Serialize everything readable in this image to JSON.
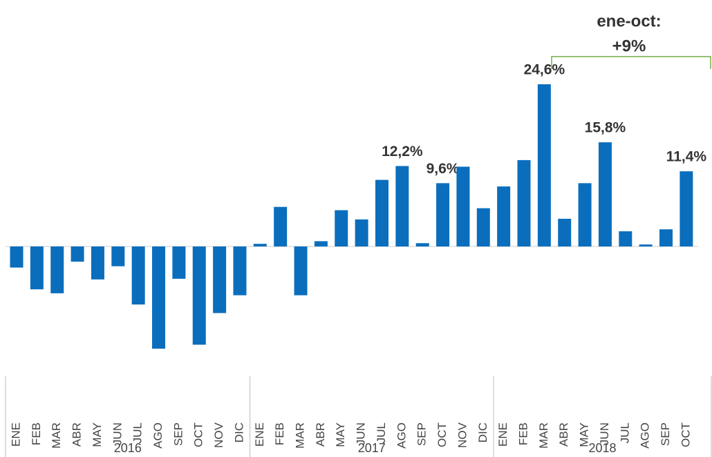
{
  "chart_data": {
    "type": "bar",
    "color": "#0a6ebd",
    "annotation": [
      "ene-oct:",
      "+9%"
    ],
    "groups": [
      {
        "name": "2016",
        "categories": [
          "ENE",
          "FEB",
          "MAR",
          "ABR",
          "MAY",
          "JUN",
          "JUL",
          "AGO",
          "SEP",
          "OCT",
          "NOV",
          "DIC"
        ]
      },
      {
        "name": "2017",
        "categories": [
          "ENE",
          "FEB",
          "MAR",
          "ABR",
          "MAY",
          "JUN",
          "JUL",
          "AGO",
          "SEP",
          "OCT",
          "NOV",
          "DIC"
        ]
      },
      {
        "name": "2018",
        "categories": [
          "ENE",
          "FEB",
          "MAR",
          "ABR",
          "MAY",
          "JUN",
          "JUL",
          "AGO",
          "SEP",
          "OCT"
        ]
      }
    ],
    "values": [
      -3.2,
      -6.5,
      -7.1,
      -2.3,
      -5.0,
      -3.0,
      -8.8,
      -15.5,
      -4.9,
      -14.9,
      -10.1,
      -7.4,
      0.4,
      6.0,
      -7.4,
      0.8,
      5.5,
      4.1,
      10.1,
      12.2,
      0.5,
      9.6,
      12.1,
      5.8,
      9.1,
      13.1,
      24.6,
      4.2,
      9.6,
      15.8,
      2.3,
      0.3,
      2.6,
      11.4
    ],
    "value_labels": [
      null,
      null,
      null,
      null,
      null,
      null,
      null,
      null,
      null,
      null,
      null,
      null,
      null,
      null,
      null,
      null,
      null,
      null,
      null,
      "12,2%",
      null,
      "9,6%",
      null,
      null,
      null,
      null,
      "24,6%",
      null,
      null,
      "15,8%",
      null,
      null,
      null,
      "11,4%"
    ],
    "ylim": [
      -17,
      26
    ]
  }
}
